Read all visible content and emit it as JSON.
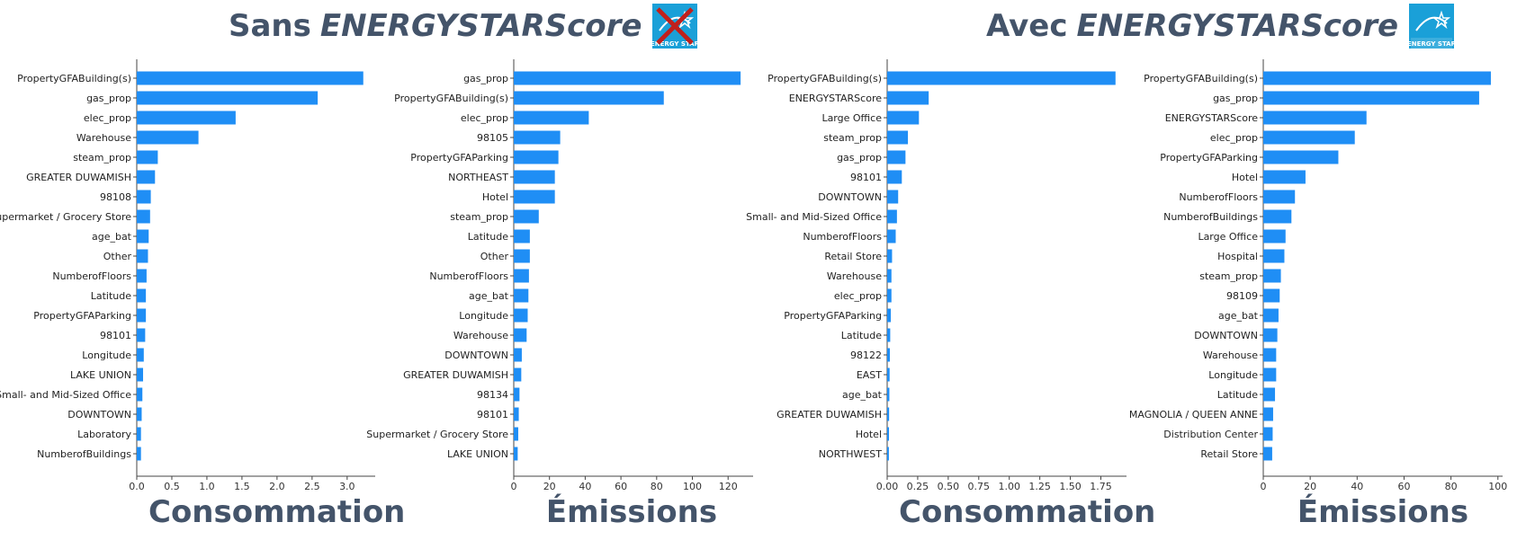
{
  "headings": {
    "left": {
      "prefix": "Sans",
      "emph": "ENERGYSTARScore",
      "logo_caption": "ENERGY STAR"
    },
    "right": {
      "prefix": "Avec",
      "emph": "ENERGYSTARScore",
      "logo_caption": "ENERGY STAR"
    }
  },
  "colors": {
    "bar": "#1f8ef5",
    "title": "#44546a",
    "logo_bg": "#1aa0d8",
    "cross": "#c0201c"
  },
  "chart_data": [
    {
      "type": "bar",
      "orientation": "horizontal",
      "footer": "Consommation",
      "categories": [
        "PropertyGFABuilding(s)",
        "gas_prop",
        "elec_prop",
        "Warehouse",
        "steam_prop",
        "GREATER DUWAMISH",
        "98108",
        "Supermarket / Grocery Store",
        "age_bat",
        "Other",
        "NumberofFloors",
        "Latitude",
        "PropertyGFAParking",
        "98101",
        "Longitude",
        "LAKE UNION",
        "Small- and Mid-Sized Office",
        "DOWNTOWN",
        "Laboratory",
        "NumberofBuildings"
      ],
      "values": [
        3.23,
        2.58,
        1.41,
        0.88,
        0.3,
        0.26,
        0.2,
        0.19,
        0.17,
        0.16,
        0.14,
        0.13,
        0.13,
        0.12,
        0.1,
        0.09,
        0.08,
        0.07,
        0.06,
        0.06
      ],
      "xlim": [
        0,
        3.4
      ],
      "ticks": [
        0,
        0.5,
        1.0,
        1.5,
        2.0,
        2.5,
        3.0
      ],
      "tick_labels": [
        "0.0",
        "0.5",
        "1.0",
        "1.5",
        "2.0",
        "2.5",
        "3.0"
      ]
    },
    {
      "type": "bar",
      "orientation": "horizontal",
      "footer": "Émissions",
      "categories": [
        "gas_prop",
        "PropertyGFABuilding(s)",
        "elec_prop",
        "98105",
        "PropertyGFAParking",
        "NORTHEAST",
        "Hotel",
        "steam_prop",
        "Latitude",
        "Other",
        "NumberofFloors",
        "age_bat",
        "Longitude",
        "Warehouse",
        "DOWNTOWN",
        "GREATER DUWAMISH",
        "98134",
        "98101",
        "Supermarket / Grocery Store",
        "LAKE UNION"
      ],
      "values": [
        127,
        84,
        42,
        26,
        25,
        23,
        23,
        14,
        9,
        9,
        8.5,
        8.2,
        7.8,
        7.2,
        4.5,
        4.2,
        3.2,
        2.8,
        2.5,
        2.2
      ],
      "xlim": [
        0,
        134
      ],
      "ticks": [
        0,
        20,
        40,
        60,
        80,
        100,
        120
      ],
      "tick_labels": [
        "0",
        "20",
        "40",
        "60",
        "80",
        "100",
        "120"
      ]
    },
    {
      "type": "bar",
      "orientation": "horizontal",
      "footer": "Consommation",
      "categories": [
        "PropertyGFABuilding(s)",
        "ENERGYSTARScore",
        "Large Office",
        "steam_prop",
        "gas_prop",
        "98101",
        "DOWNTOWN",
        "Small- and Mid-Sized Office",
        "NumberofFloors",
        "Retail Store",
        "Warehouse",
        "elec_prop",
        "PropertyGFAParking",
        "Latitude",
        "98122",
        "EAST",
        "age_bat",
        "GREATER DUWAMISH",
        "Hotel",
        "NORTHWEST"
      ],
      "values": [
        1.87,
        0.34,
        0.26,
        0.17,
        0.15,
        0.12,
        0.09,
        0.08,
        0.07,
        0.04,
        0.035,
        0.035,
        0.03,
        0.025,
        0.022,
        0.02,
        0.018,
        0.016,
        0.015,
        0.014
      ],
      "xlim": [
        0,
        1.96
      ],
      "ticks": [
        0,
        0.25,
        0.5,
        0.75,
        1.0,
        1.25,
        1.5,
        1.75
      ],
      "tick_labels": [
        "0.00",
        "0.25",
        "0.50",
        "0.75",
        "1.00",
        "1.25",
        "1.50",
        "1.75"
      ]
    },
    {
      "type": "bar",
      "orientation": "horizontal",
      "footer": "Émissions",
      "categories": [
        "PropertyGFABuilding(s)",
        "gas_prop",
        "ENERGYSTARScore",
        "elec_prop",
        "PropertyGFAParking",
        "Hotel",
        "NumberofFloors",
        "NumberofBuildings",
        "Large Office",
        "Hospital",
        "steam_prop",
        "98109",
        "age_bat",
        "DOWNTOWN",
        "Warehouse",
        "Longitude",
        "Latitude",
        "MAGNOLIA / QUEEN ANNE",
        "Distribution Center",
        "Retail Store"
      ],
      "values": [
        97,
        92,
        44,
        39,
        32,
        18,
        13.5,
        12,
        9.5,
        9,
        7.5,
        7,
        6.5,
        6,
        5.5,
        5.5,
        5,
        4.2,
        4,
        3.8
      ],
      "xlim": [
        0,
        102
      ],
      "ticks": [
        0,
        20,
        40,
        60,
        80,
        100
      ],
      "tick_labels": [
        "0",
        "20",
        "40",
        "60",
        "80",
        "100"
      ]
    }
  ]
}
